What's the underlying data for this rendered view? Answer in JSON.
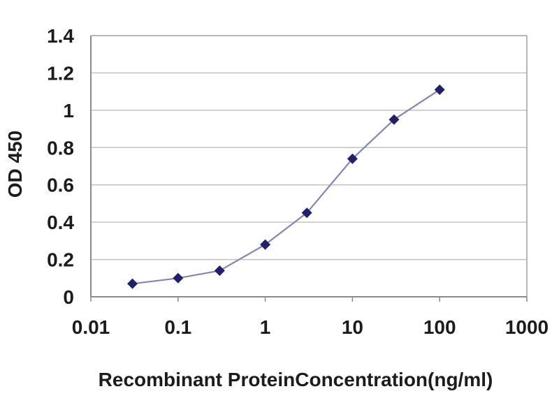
{
  "chart_data": {
    "type": "line",
    "title": "",
    "xlabel": "Recombinant ProteinConcentration(ng/ml)",
    "ylabel": "OD 450",
    "x_scale": "log",
    "x": [
      0.03,
      0.1,
      0.3,
      1,
      3,
      10,
      30,
      100
    ],
    "y": [
      0.07,
      0.1,
      0.14,
      0.28,
      0.45,
      0.74,
      0.95,
      1.11
    ],
    "xlim": [
      0.01,
      1000
    ],
    "ylim": [
      0,
      1.4
    ],
    "x_ticks": [
      0.01,
      0.1,
      1,
      10,
      100,
      1000
    ],
    "x_tick_labels": [
      "0.01",
      "0.1",
      "1",
      "10",
      "100",
      "1000"
    ],
    "y_ticks": [
      0,
      0.2,
      0.4,
      0.6,
      0.8,
      1.0,
      1.2,
      1.4
    ],
    "y_tick_labels": [
      "0",
      "0.2",
      "0.4",
      "0.6",
      "0.8",
      "1",
      "1.2",
      "1.4"
    ],
    "grid": "horizontal",
    "legend": "none",
    "marker_shape": "diamond",
    "colors": {
      "line": "#8484b8",
      "marker": "#20206e",
      "gridline": "#c2c2c2",
      "frame": "#a0a0a0",
      "axis": "#8a8a8a",
      "text": "#1c1c1c",
      "background": "#ffffff"
    }
  }
}
